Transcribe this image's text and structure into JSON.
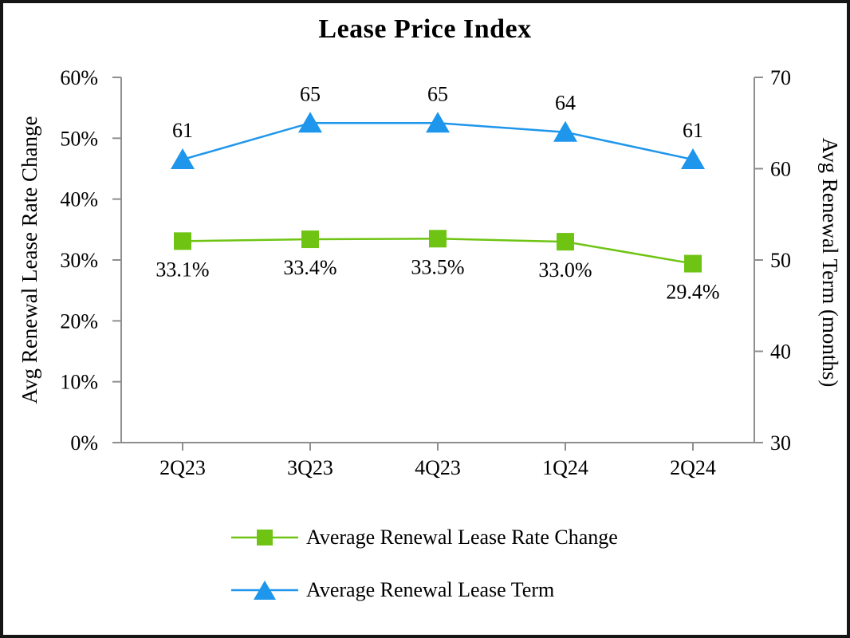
{
  "chart_data": {
    "type": "line",
    "title": "Lease Price Index",
    "categories": [
      "2Q23",
      "3Q23",
      "4Q23",
      "1Q24",
      "2Q24"
    ],
    "series": [
      {
        "name": "Average Renewal Lease Rate Change",
        "axis": "left",
        "marker": "square",
        "color": "#6FC413",
        "values": [
          33.1,
          33.4,
          33.5,
          33.0,
          29.4
        ],
        "labels": [
          "33.1%",
          "33.4%",
          "33.5%",
          "33.0%",
          "29.4%"
        ],
        "label_position": "below"
      },
      {
        "name": "Average Renewal Lease Term",
        "axis": "right",
        "marker": "triangle",
        "color": "#1E96EB",
        "values": [
          61,
          65,
          65,
          64,
          61
        ],
        "labels": [
          "61",
          "65",
          "65",
          "64",
          "61"
        ],
        "label_position": "above"
      }
    ],
    "left_axis": {
      "label": "Avg Renewal Lease Rate Change",
      "min": 0,
      "max": 60,
      "step": 10,
      "tick_labels": [
        "0%",
        "10%",
        "20%",
        "30%",
        "40%",
        "50%",
        "60%"
      ]
    },
    "right_axis": {
      "label": "Avg Renewal Term (months)",
      "min": 30,
      "max": 70,
      "step": 10,
      "tick_labels": [
        "30",
        "40",
        "50",
        "60",
        "70"
      ]
    },
    "x_axis": {
      "tick_position": "category-center"
    },
    "legend_position": "bottom",
    "grid": false,
    "axis_color": "#8E8E8E",
    "text_color": "#000000",
    "background_color": "#FFFFFF"
  }
}
